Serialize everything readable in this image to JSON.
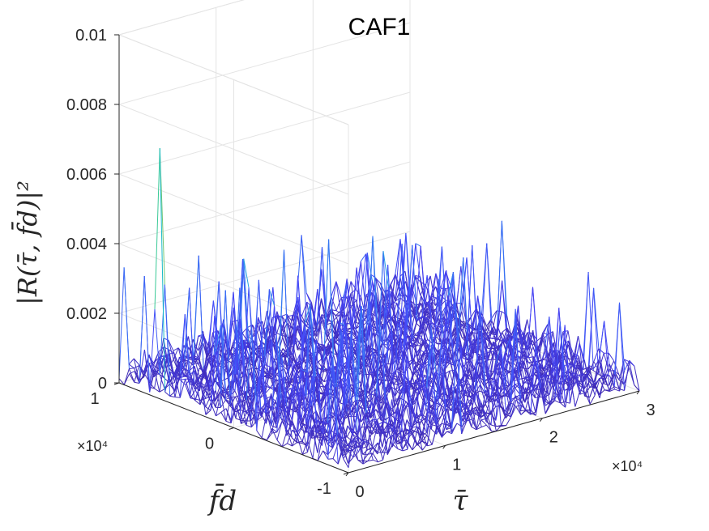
{
  "chart_data": {
    "type": "surface",
    "title": "CAF1",
    "xlabel": "τ̄",
    "ylabel": "f̄d",
    "zlabel": "|R(τ̄, f̄d)|²",
    "x_ticks": [
      "0",
      "1",
      "2",
      "3"
    ],
    "x_exponent": "×10⁴",
    "y_ticks": [
      "-1",
      "0",
      "1"
    ],
    "y_exponent": "×10⁴",
    "z_ticks": [
      "0",
      "0.002",
      "0.004",
      "0.006",
      "0.008",
      "0.01"
    ],
    "xlim": [
      0,
      30000
    ],
    "ylim": [
      -10000,
      10000
    ],
    "zlim": [
      0,
      0.01
    ],
    "grid": true,
    "colormap": [
      "#3e26a8",
      "#4745f8",
      "#2f8ff0",
      "#16b8cf",
      "#30c99c",
      "#e3c12b",
      "#f9fb0e"
    ],
    "surface": {
      "noise_floor_typical": 0.0006,
      "noise_peak_max": 0.004,
      "main_peak": {
        "x": 0,
        "y": 6500,
        "z": 0.0072
      }
    }
  }
}
